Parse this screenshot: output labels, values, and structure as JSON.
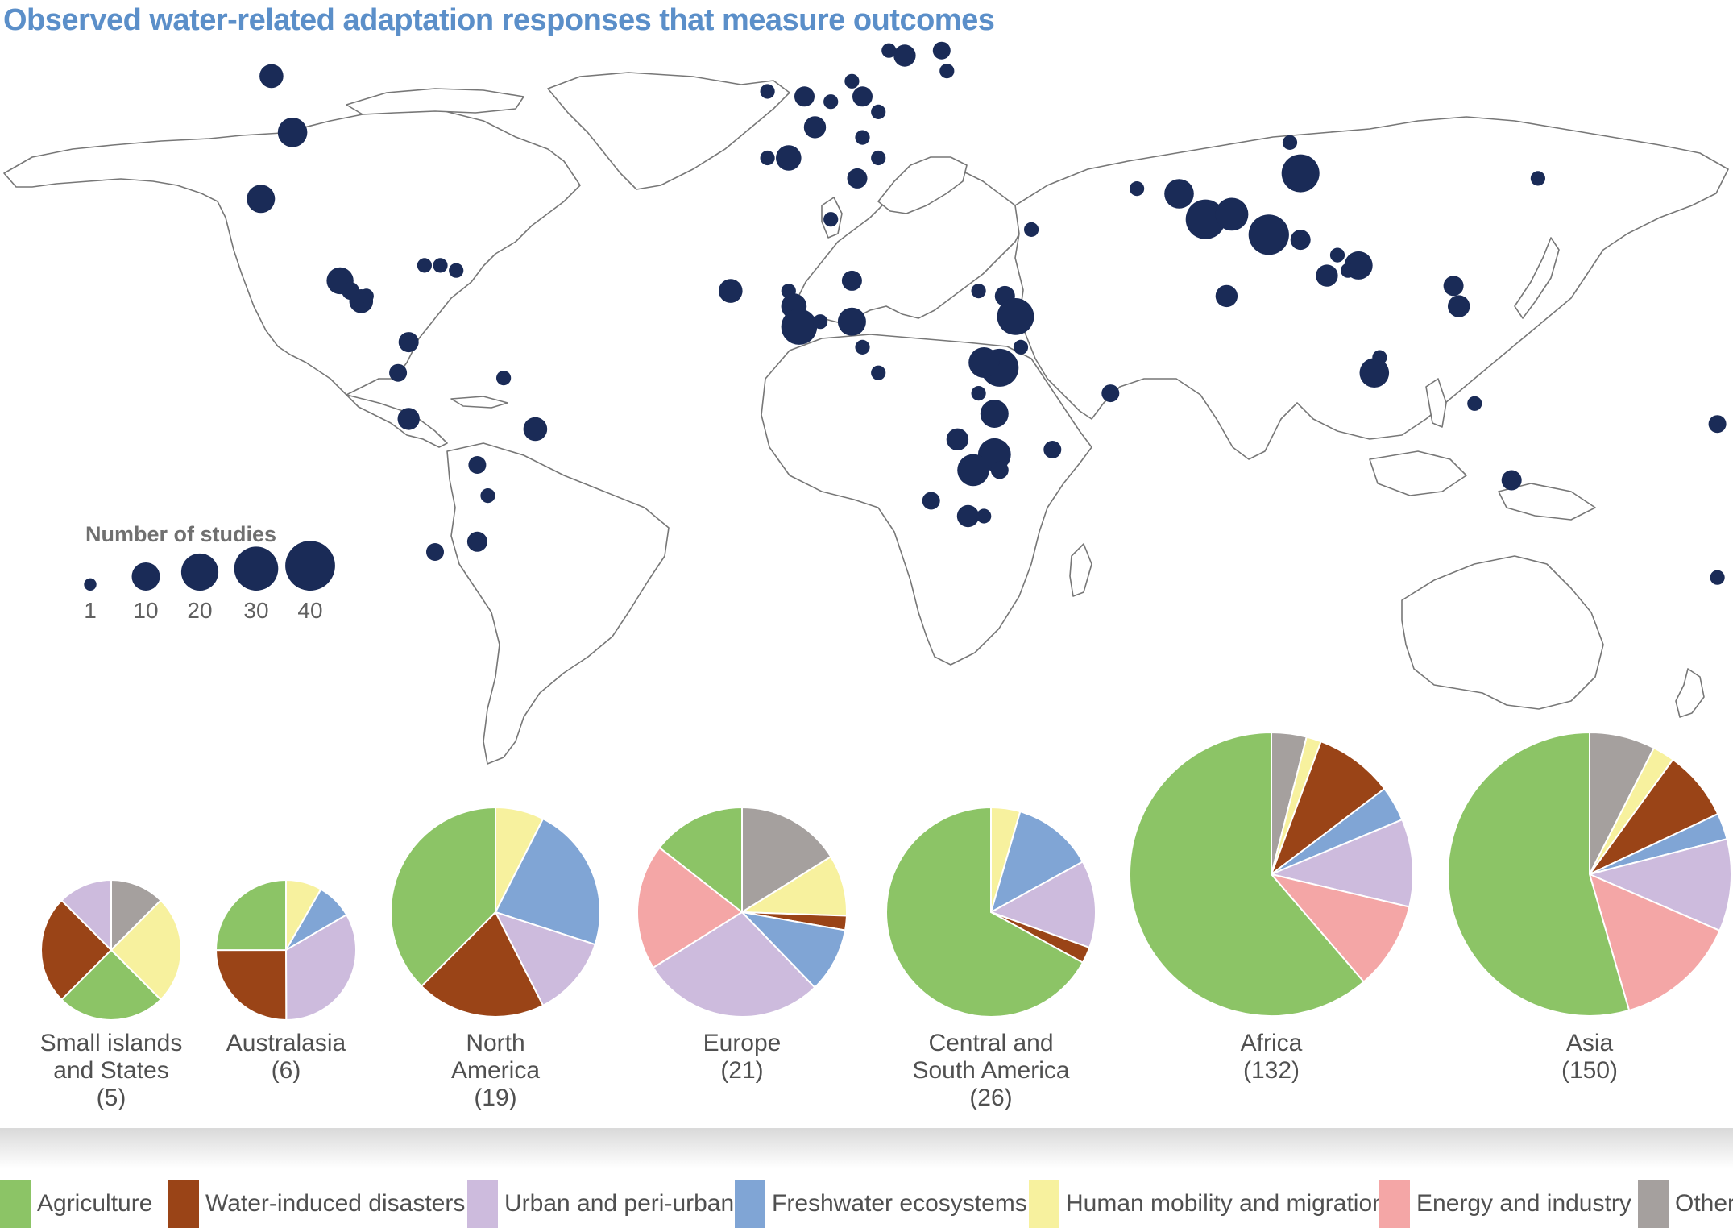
{
  "title": "Observed water-related adaptation responses that measure outcomes",
  "colors": {
    "agriculture": "#8cc466",
    "water_induced_disasters": "#9a4417",
    "urban": "#cdbbdd",
    "freshwater": "#80a5d5",
    "mobility": "#f7f19e",
    "energy": "#f4a6a6",
    "others": "#a5a09e",
    "dots": "#1a2b57",
    "land_outline": "#777777"
  },
  "size_legend": {
    "title": "Number of studies",
    "values": [
      1,
      10,
      20,
      30,
      40
    ],
    "labels": [
      "1",
      "10",
      "20",
      "30",
      "40"
    ]
  },
  "map_dots": [
    {
      "lon": -102,
      "lat": 56,
      "n": 5
    },
    {
      "lon": -98,
      "lat": 45,
      "n": 9
    },
    {
      "lon": -104,
      "lat": 32,
      "n": 8
    },
    {
      "lon": -89,
      "lat": 16,
      "n": 7
    },
    {
      "lon": -87,
      "lat": 14,
      "n": 2
    },
    {
      "lon": -85,
      "lat": 12,
      "n": 5
    },
    {
      "lon": -84,
      "lat": 13,
      "n": 1
    },
    {
      "lon": -73,
      "lat": 19,
      "n": 1
    },
    {
      "lon": -70,
      "lat": 19,
      "n": 1
    },
    {
      "lon": -67,
      "lat": 18,
      "n": 1
    },
    {
      "lon": -76,
      "lat": 4,
      "n": 3
    },
    {
      "lon": -78,
      "lat": -2,
      "n": 2
    },
    {
      "lon": -76,
      "lat": -11,
      "n": 4
    },
    {
      "lon": -58,
      "lat": -3,
      "n": 1
    },
    {
      "lon": -52,
      "lat": -13,
      "n": 5
    },
    {
      "lon": -63,
      "lat": -20,
      "n": 2
    },
    {
      "lon": -61,
      "lat": -26,
      "n": 1
    },
    {
      "lon": -71,
      "lat": -37,
      "n": 2
    },
    {
      "lon": -63,
      "lat": -35,
      "n": 3
    },
    {
      "lon": -8,
      "lat": 53,
      "n": 1
    },
    {
      "lon": -1,
      "lat": 52,
      "n": 3
    },
    {
      "lon": 4,
      "lat": 51,
      "n": 1
    },
    {
      "lon": 10,
      "lat": 52,
      "n": 3
    },
    {
      "lon": 8,
      "lat": 55,
      "n": 1
    },
    {
      "lon": 18,
      "lat": 60,
      "n": 4
    },
    {
      "lon": 15,
      "lat": 61,
      "n": 1
    },
    {
      "lon": 25,
      "lat": 61,
      "n": 2
    },
    {
      "lon": 26,
      "lat": 57,
      "n": 1
    },
    {
      "lon": 13,
      "lat": 49,
      "n": 1
    },
    {
      "lon": 1,
      "lat": 46,
      "n": 4
    },
    {
      "lon": 10,
      "lat": 44,
      "n": 1
    },
    {
      "lon": -4,
      "lat": 40,
      "n": 6
    },
    {
      "lon": -8,
      "lat": 40,
      "n": 1
    },
    {
      "lon": 13,
      "lat": 40,
      "n": 1
    },
    {
      "lon": 9,
      "lat": 36,
      "n": 3
    },
    {
      "lon": 4,
      "lat": 28,
      "n": 1
    },
    {
      "lon": 42,
      "lat": 26,
      "n": 1
    },
    {
      "lon": 62,
      "lat": 34,
      "n": 1
    },
    {
      "lon": 70,
      "lat": 33,
      "n": 9
    },
    {
      "lon": 75,
      "lat": 28,
      "n": 19
    },
    {
      "lon": 80,
      "lat": 29,
      "n": 12
    },
    {
      "lon": 87,
      "lat": 25,
      "n": 20
    },
    {
      "lon": 93,
      "lat": 24,
      "n": 3
    },
    {
      "lon": 91,
      "lat": 43,
      "n": 1
    },
    {
      "lon": 93,
      "lat": 37,
      "n": 17
    },
    {
      "lon": 100,
      "lat": 21,
      "n": 1
    },
    {
      "lon": 104,
      "lat": 19,
      "n": 8
    },
    {
      "lon": 98,
      "lat": 17,
      "n": 4
    },
    {
      "lon": 102,
      "lat": 18,
      "n": 1
    },
    {
      "lon": 122,
      "lat": 15,
      "n": 3
    },
    {
      "lon": 123,
      "lat": 11,
      "n": 4
    },
    {
      "lon": 138,
      "lat": 36,
      "n": 1
    },
    {
      "lon": 79,
      "lat": 13,
      "n": 4
    },
    {
      "lon": 108,
      "lat": 1,
      "n": 1
    },
    {
      "lon": 107,
      "lat": -2,
      "n": 9
    },
    {
      "lon": 126,
      "lat": -8,
      "n": 1
    },
    {
      "lon": 133,
      "lat": -23,
      "n": 3
    },
    {
      "lon": 172,
      "lat": -12,
      "n": 2
    },
    {
      "lon": 172,
      "lat": -42,
      "n": 1
    },
    {
      "lon": 57,
      "lat": -6,
      "n": 2
    },
    {
      "lon": -15,
      "lat": 14,
      "n": 5
    },
    {
      "lon": -4,
      "lat": 14,
      "n": 1
    },
    {
      "lon": -3,
      "lat": 11,
      "n": 6
    },
    {
      "lon": -2,
      "lat": 7,
      "n": 15
    },
    {
      "lon": 2,
      "lat": 8,
      "n": 1
    },
    {
      "lon": 8,
      "lat": 16,
      "n": 3
    },
    {
      "lon": 8,
      "lat": 8,
      "n": 8
    },
    {
      "lon": 10,
      "lat": 3,
      "n": 1
    },
    {
      "lon": 13,
      "lat": -2,
      "n": 1
    },
    {
      "lon": 32,
      "lat": 14,
      "n": 1
    },
    {
      "lon": 37,
      "lat": 13,
      "n": 3
    },
    {
      "lon": 39,
      "lat": 9,
      "n": 16
    },
    {
      "lon": 40,
      "lat": 3,
      "n": 1
    },
    {
      "lon": 36,
      "lat": -1,
      "n": 17
    },
    {
      "lon": 33,
      "lat": 0,
      "n": 10
    },
    {
      "lon": 32,
      "lat": -6,
      "n": 1
    },
    {
      "lon": 35,
      "lat": -10,
      "n": 8
    },
    {
      "lon": 28,
      "lat": -15,
      "n": 4
    },
    {
      "lon": 35,
      "lat": -18,
      "n": 12
    },
    {
      "lon": 31,
      "lat": -21,
      "n": 11
    },
    {
      "lon": 36,
      "lat": -21,
      "n": 2
    },
    {
      "lon": 23,
      "lat": -27,
      "n": 2
    },
    {
      "lon": 30,
      "lat": -30,
      "n": 4
    },
    {
      "lon": 33,
      "lat": -30,
      "n": 1
    },
    {
      "lon": 46,
      "lat": -17,
      "n": 2
    }
  ],
  "categories": [
    {
      "key": "agriculture",
      "label": "Agriculture"
    },
    {
      "key": "water_induced_disasters",
      "label": "Water-induced disasters"
    },
    {
      "key": "urban",
      "label": "Urban and peri-urban"
    },
    {
      "key": "freshwater",
      "label": "Freshwater ecosystems"
    },
    {
      "key": "mobility",
      "label": "Human mobility and migration"
    },
    {
      "key": "energy",
      "label": "Energy and industry"
    },
    {
      "key": "others",
      "label": "Others"
    }
  ],
  "regions": [
    {
      "name": "Small islands and States",
      "label_lines": [
        "Small islands",
        "and States"
      ],
      "count_label": "(5)",
      "total": 5,
      "slices": [
        {
          "key": "others",
          "value": 0.125
        },
        {
          "key": "mobility",
          "value": 0.25
        },
        {
          "key": "agriculture",
          "value": 0.25
        },
        {
          "key": "water_induced_disasters",
          "value": 0.25
        },
        {
          "key": "urban",
          "value": 0.125
        }
      ]
    },
    {
      "name": "Australasia",
      "label_lines": [
        "Australasia"
      ],
      "count_label": "(6)",
      "total": 6,
      "slices": [
        {
          "key": "mobility",
          "value": 0.083
        },
        {
          "key": "freshwater",
          "value": 0.083
        },
        {
          "key": "urban",
          "value": 0.333
        },
        {
          "key": "water_induced_disasters",
          "value": 0.25
        },
        {
          "key": "agriculture",
          "value": 0.25
        }
      ]
    },
    {
      "name": "North America",
      "label_lines": [
        "North",
        "America"
      ],
      "count_label": "(19)",
      "total": 19,
      "slices": [
        {
          "key": "mobility",
          "value": 0.075
        },
        {
          "key": "freshwater",
          "value": 0.225
        },
        {
          "key": "urban",
          "value": 0.125
        },
        {
          "key": "water_induced_disasters",
          "value": 0.2
        },
        {
          "key": "agriculture",
          "value": 0.375
        }
      ]
    },
    {
      "name": "Europe",
      "label_lines": [
        "Europe"
      ],
      "count_label": "(21)",
      "total": 21,
      "slices": [
        {
          "key": "others",
          "value": 0.145
        },
        {
          "key": "mobility",
          "value": 0.085
        },
        {
          "key": "water_induced_disasters",
          "value": 0.02
        },
        {
          "key": "freshwater",
          "value": 0.09
        },
        {
          "key": "urban",
          "value": 0.255
        },
        {
          "key": "energy",
          "value": 0.175
        },
        {
          "key": "agriculture",
          "value": 0.13
        }
      ]
    },
    {
      "name": "Central and South America",
      "label_lines": [
        "Central and",
        "South America"
      ],
      "count_label": "(26)",
      "total": 26,
      "slices": [
        {
          "key": "mobility",
          "value": 0.045
        },
        {
          "key": "freshwater",
          "value": 0.125
        },
        {
          "key": "urban",
          "value": 0.135
        },
        {
          "key": "water_induced_disasters",
          "value": 0.025
        },
        {
          "key": "agriculture",
          "value": 0.67
        }
      ]
    },
    {
      "name": "Africa",
      "label_lines": [
        "Africa"
      ],
      "count_label": "(132)",
      "total": 132,
      "slices": [
        {
          "key": "others",
          "value": 0.04
        },
        {
          "key": "mobility",
          "value": 0.017
        },
        {
          "key": "water_induced_disasters",
          "value": 0.09
        },
        {
          "key": "freshwater",
          "value": 0.04
        },
        {
          "key": "urban",
          "value": 0.1
        },
        {
          "key": "energy",
          "value": 0.1
        },
        {
          "key": "agriculture",
          "value": 0.613
        }
      ]
    },
    {
      "name": "Asia",
      "label_lines": [
        "Asia"
      ],
      "count_label": "(150)",
      "total": 150,
      "slices": [
        {
          "key": "others",
          "value": 0.075
        },
        {
          "key": "mobility",
          "value": 0.025
        },
        {
          "key": "water_induced_disasters",
          "value": 0.08
        },
        {
          "key": "freshwater",
          "value": 0.03
        },
        {
          "key": "urban",
          "value": 0.105
        },
        {
          "key": "energy",
          "value": 0.14
        },
        {
          "key": "agriculture",
          "value": 0.545
        }
      ]
    }
  ]
}
